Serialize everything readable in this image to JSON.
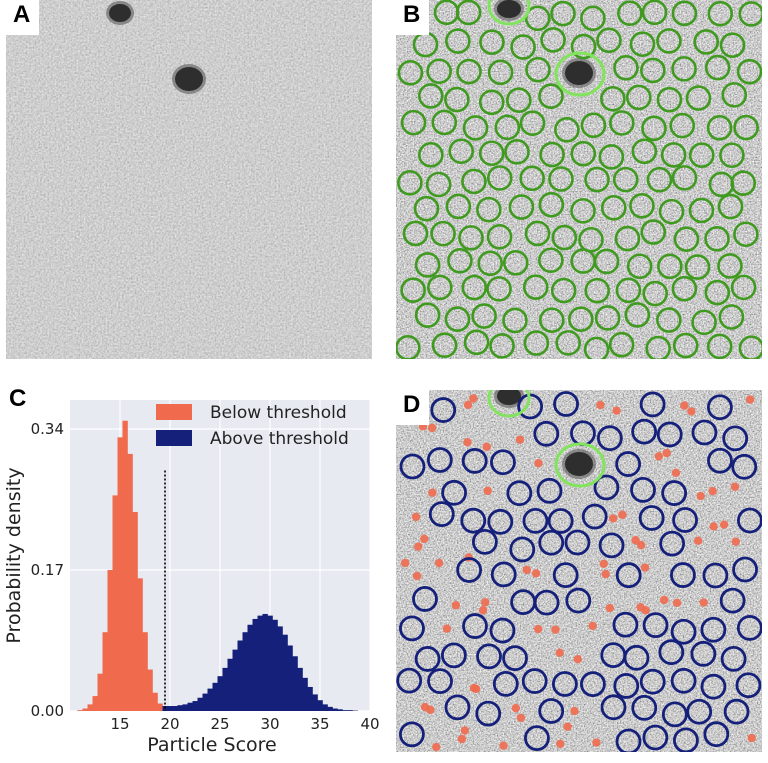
{
  "panels": {
    "A": {
      "label": "A"
    },
    "B": {
      "label": "B"
    },
    "C": {
      "label": "C"
    },
    "D": {
      "label": "D"
    }
  },
  "colors": {
    "below": "#f06a4e",
    "above": "#15207a",
    "picked_green": "#3f9a1f",
    "contaminant_green": "#82e35c",
    "plot_background": "#e8eaf2",
    "grid": "#ffffff"
  },
  "chart_data": {
    "type": "histogram",
    "xlabel": "Particle Score",
    "ylabel": "Probability density",
    "xlim": [
      10,
      40
    ],
    "ylim": [
      0,
      0.375
    ],
    "xticks": [
      "15",
      "20",
      "25",
      "30",
      "35",
      "40"
    ],
    "yticks": [
      "0.00",
      "0.17",
      "0.34"
    ],
    "threshold": 19.5,
    "grid": true,
    "legend_position": "top-right",
    "series": [
      {
        "name": "Below threshold",
        "color": "#f06a4e",
        "x": [
          11.0,
          11.5,
          12.0,
          12.5,
          13.0,
          13.5,
          14.0,
          14.5,
          15.0,
          15.5,
          16.0,
          16.5,
          17.0,
          17.5,
          18.0,
          18.5,
          19.0,
          19.5
        ],
        "values": [
          0.001,
          0.003,
          0.008,
          0.018,
          0.045,
          0.095,
          0.17,
          0.26,
          0.33,
          0.35,
          0.31,
          0.24,
          0.16,
          0.095,
          0.05,
          0.022,
          0.009,
          0.003
        ]
      },
      {
        "name": "Above threshold",
        "color": "#15207a",
        "x": [
          19.5,
          20.0,
          20.5,
          21.0,
          21.5,
          22.0,
          22.5,
          23.0,
          23.5,
          24.0,
          24.5,
          25.0,
          25.5,
          26.0,
          26.5,
          27.0,
          27.5,
          28.0,
          28.5,
          29.0,
          29.5,
          30.0,
          30.5,
          31.0,
          31.5,
          32.0,
          32.5,
          33.0,
          33.5,
          34.0,
          34.5,
          35.0,
          35.5,
          36.0,
          36.5,
          37.0,
          37.5,
          38.0,
          38.5
        ],
        "values": [
          0.006,
          0.006,
          0.006,
          0.007,
          0.008,
          0.01,
          0.012,
          0.016,
          0.021,
          0.027,
          0.034,
          0.042,
          0.052,
          0.063,
          0.074,
          0.085,
          0.095,
          0.104,
          0.111,
          0.115,
          0.117,
          0.115,
          0.11,
          0.102,
          0.092,
          0.079,
          0.066,
          0.052,
          0.04,
          0.029,
          0.02,
          0.013,
          0.008,
          0.005,
          0.003,
          0.002,
          0.001,
          0.001,
          0.0005
        ]
      }
    ]
  }
}
